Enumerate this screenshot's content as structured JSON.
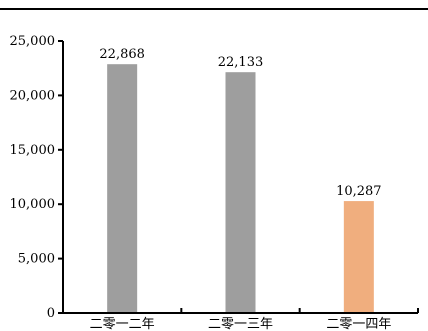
{
  "chart_data": {
    "type": "bar",
    "categories": [
      "二零一二年",
      "二零一三年",
      "二零一四年"
    ],
    "values": [
      22868,
      22133,
      10287
    ],
    "data_labels": [
      "22,868",
      "22,133",
      "10,287"
    ],
    "colors": [
      "#9e9e9e",
      "#9e9e9e",
      "#f0ae7e"
    ],
    "ylim": [
      0,
      25000
    ],
    "yticks": [
      0,
      5000,
      10000,
      15000,
      20000,
      25000
    ],
    "ytick_labels": [
      "0",
      "5,000",
      "10,000",
      "15,000",
      "20,000",
      "25,000"
    ],
    "title": "",
    "xlabel": "",
    "ylabel": "",
    "grid": false,
    "legend": "none"
  }
}
